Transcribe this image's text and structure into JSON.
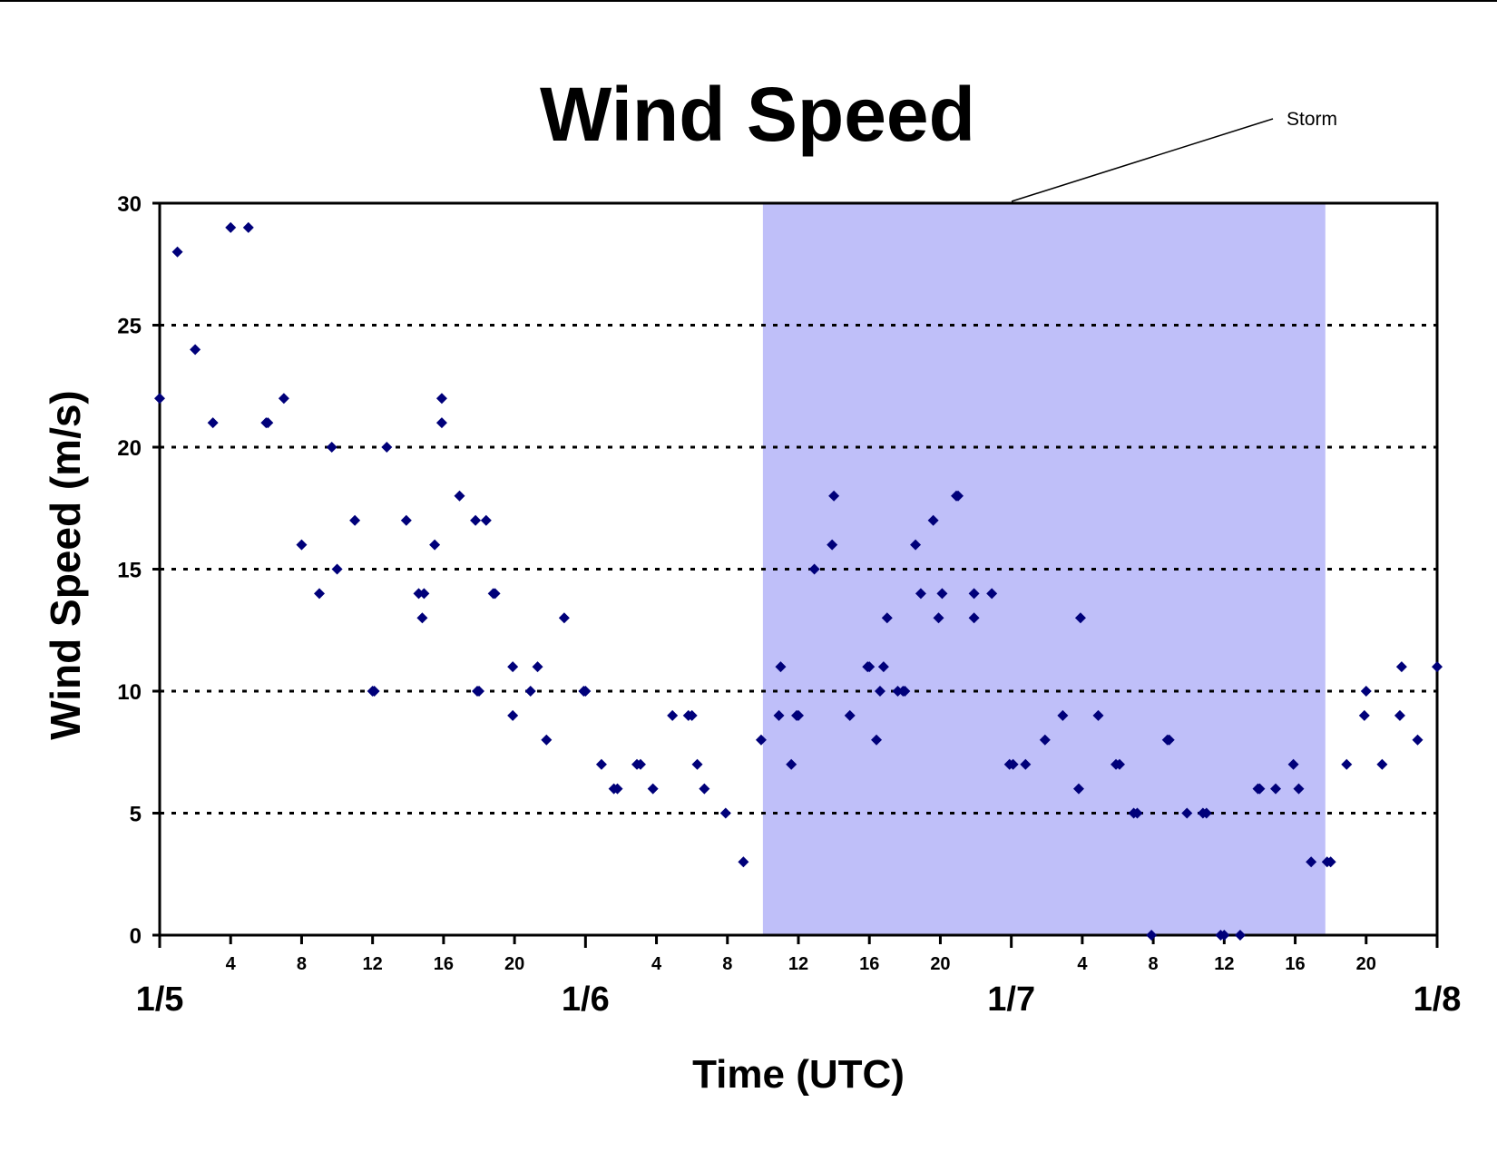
{
  "chart_data": {
    "type": "scatter",
    "title": "Wind Speed",
    "xlabel": "Time (UTC)",
    "ylabel": "Wind Speed (m/s)",
    "ylim": [
      0,
      30
    ],
    "yticks": [
      0,
      5,
      10,
      15,
      20,
      25,
      30
    ],
    "xlim_hours": [
      0,
      72
    ],
    "x_day_labels": [
      {
        "hour": 0,
        "label": "1/5"
      },
      {
        "hour": 24,
        "label": "1/6"
      },
      {
        "hour": 48,
        "label": "1/7"
      },
      {
        "hour": 72,
        "label": "1/8"
      }
    ],
    "x_hour_labels": [
      "4",
      "8",
      "12",
      "16",
      "20"
    ],
    "grid": "horizontal dotted",
    "marker_color": "#00007a",
    "storm_shading": {
      "label": "Storm",
      "start_hour": 34,
      "end_hour": 65.7,
      "color": "#bfbff9"
    },
    "series": [
      {
        "points": [
          [
            0,
            22
          ],
          [
            1,
            28
          ],
          [
            2,
            24
          ],
          [
            3,
            21
          ],
          [
            4,
            29
          ],
          [
            5,
            29
          ],
          [
            6,
            21
          ],
          [
            6.1,
            21
          ],
          [
            7,
            22
          ],
          [
            8,
            16
          ],
          [
            9,
            14
          ],
          [
            9.7,
            20
          ],
          [
            10,
            15
          ],
          [
            11,
            17
          ],
          [
            12,
            10
          ],
          [
            12.1,
            10
          ],
          [
            12.8,
            20
          ],
          [
            13.9,
            17
          ],
          [
            14.6,
            14
          ],
          [
            14.8,
            13
          ],
          [
            14.9,
            14
          ],
          [
            15.5,
            16
          ],
          [
            15.9,
            22
          ],
          [
            15.9,
            21
          ],
          [
            16.9,
            18
          ],
          [
            17.8,
            17
          ],
          [
            17.9,
            10
          ],
          [
            18,
            10
          ],
          [
            18.4,
            17
          ],
          [
            18.8,
            14
          ],
          [
            18.9,
            14
          ],
          [
            19.9,
            11
          ],
          [
            19.9,
            9
          ],
          [
            20.9,
            10
          ],
          [
            21.3,
            11
          ],
          [
            21.8,
            8
          ],
          [
            22.8,
            13
          ],
          [
            23.9,
            10
          ],
          [
            24,
            10
          ],
          [
            24.9,
            7
          ],
          [
            25.6,
            6
          ],
          [
            25.8,
            6
          ],
          [
            26.9,
            7
          ],
          [
            27.1,
            7
          ],
          [
            27.8,
            6
          ],
          [
            28.9,
            9
          ],
          [
            29.8,
            9
          ],
          [
            30,
            9
          ],
          [
            30.3,
            7
          ],
          [
            30.7,
            6
          ],
          [
            31.9,
            5
          ],
          [
            32.9,
            3
          ],
          [
            33.9,
            8
          ],
          [
            35,
            11
          ],
          [
            34.9,
            9
          ],
          [
            35.6,
            7
          ],
          [
            35.9,
            9
          ],
          [
            36,
            9
          ],
          [
            36.9,
            15
          ],
          [
            37.9,
            16
          ],
          [
            38,
            18
          ],
          [
            38.9,
            9
          ],
          [
            39.9,
            11
          ],
          [
            40,
            11
          ],
          [
            40.4,
            8
          ],
          [
            40.6,
            10
          ],
          [
            40.8,
            11
          ],
          [
            41,
            13
          ],
          [
            41.6,
            10
          ],
          [
            41.9,
            10
          ],
          [
            42,
            10
          ],
          [
            42.6,
            16
          ],
          [
            42.9,
            14
          ],
          [
            43.6,
            17
          ],
          [
            43.9,
            13
          ],
          [
            44.1,
            14
          ],
          [
            44.9,
            18
          ],
          [
            45,
            18
          ],
          [
            45.9,
            14
          ],
          [
            45.9,
            13
          ],
          [
            46.9,
            14
          ],
          [
            47.9,
            7
          ],
          [
            48.1,
            7
          ],
          [
            48.8,
            7
          ],
          [
            49.9,
            8
          ],
          [
            50.9,
            9
          ],
          [
            51.8,
            6
          ],
          [
            51.9,
            13
          ],
          [
            52.9,
            9
          ],
          [
            53.9,
            7
          ],
          [
            54.1,
            7
          ],
          [
            54.9,
            5
          ],
          [
            55.1,
            5
          ],
          [
            55.9,
            0
          ],
          [
            56.8,
            8
          ],
          [
            56.9,
            8
          ],
          [
            57.9,
            5
          ],
          [
            58.8,
            5
          ],
          [
            59,
            5
          ],
          [
            59.8,
            0
          ],
          [
            60,
            0
          ],
          [
            60.9,
            0
          ],
          [
            61.9,
            6
          ],
          [
            62,
            6
          ],
          [
            62.9,
            6
          ],
          [
            63.9,
            7
          ],
          [
            64.2,
            6
          ],
          [
            64.9,
            3
          ],
          [
            65.8,
            3
          ],
          [
            66,
            3
          ],
          [
            66.9,
            7
          ],
          [
            67.9,
            9
          ],
          [
            68,
            10
          ],
          [
            68.9,
            7
          ],
          [
            69.9,
            9
          ],
          [
            70,
            11
          ],
          [
            70.9,
            8
          ],
          [
            72,
            11
          ]
        ]
      }
    ]
  }
}
